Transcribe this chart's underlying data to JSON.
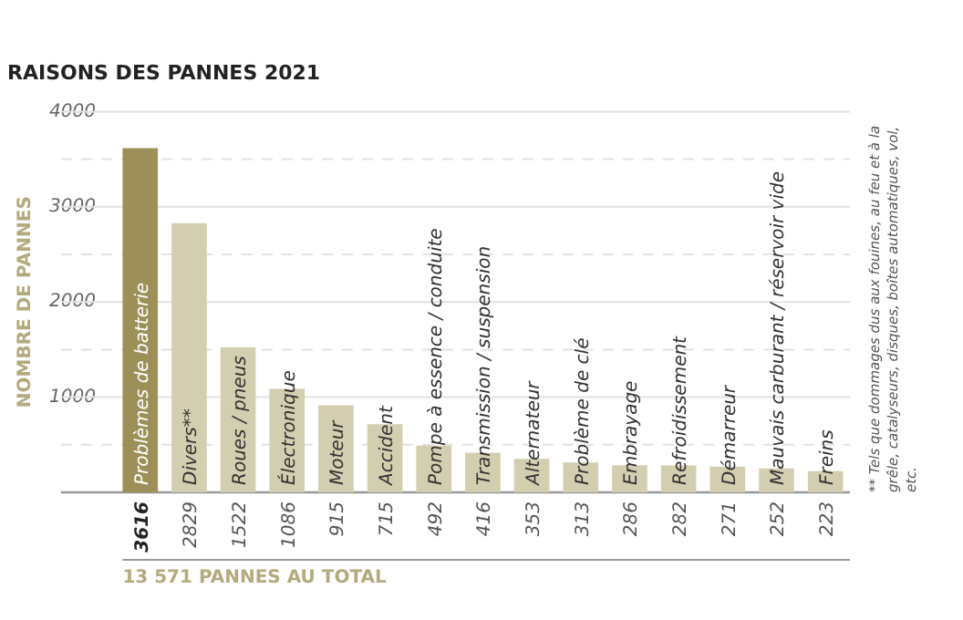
{
  "chart_data": {
    "type": "bar",
    "title": "RAISONS DES PANNES 2021",
    "ylabel": "NOMBRE DE PANNES",
    "categories": [
      "Problèmes de batterie",
      "Divers**",
      "Roues / pneus",
      "Électronique",
      "Moteur",
      "Accident",
      "Pompe à essence / conduite",
      "Transmission / suspension",
      "Alternateur",
      "Problème de clé",
      "Embrayage",
      "Refroidissement",
      "Démarreur",
      "Mauvais carburant / réservoir vide",
      "Freins"
    ],
    "values": [
      3616,
      2829,
      1522,
      1086,
      915,
      715,
      492,
      416,
      353,
      313,
      286,
      282,
      271,
      252,
      223
    ],
    "colors": [
      "#9c8f58",
      "#d4ceb1",
      "#d4ceb1",
      "#d4ceb1",
      "#d4ceb1",
      "#d4ceb1",
      "#d4ceb1",
      "#d4ceb1",
      "#d4ceb1",
      "#d4ceb1",
      "#d4ceb1",
      "#d4ceb1",
      "#d4ceb1",
      "#d4ceb1",
      "#d4ceb1"
    ],
    "ylim": [
      0,
      4000
    ],
    "yticks": [
      {
        "value": 0,
        "label": null
      },
      {
        "value": 500,
        "label": null
      },
      1000,
      {
        "value": 1500,
        "label": null
      },
      2000,
      {
        "value": 2500,
        "label": null
      },
      3000,
      {
        "value": 3500,
        "label": null
      },
      4000
    ],
    "grid": "y",
    "data_labels": true,
    "annotations": [
      "13 571 PANNES AU TOTAL",
      "** Tels que dommages dus aux fouines, au feu et à la grêle, catalyseurs, disques, boîtes automatiques, vol, etc."
    ]
  }
}
